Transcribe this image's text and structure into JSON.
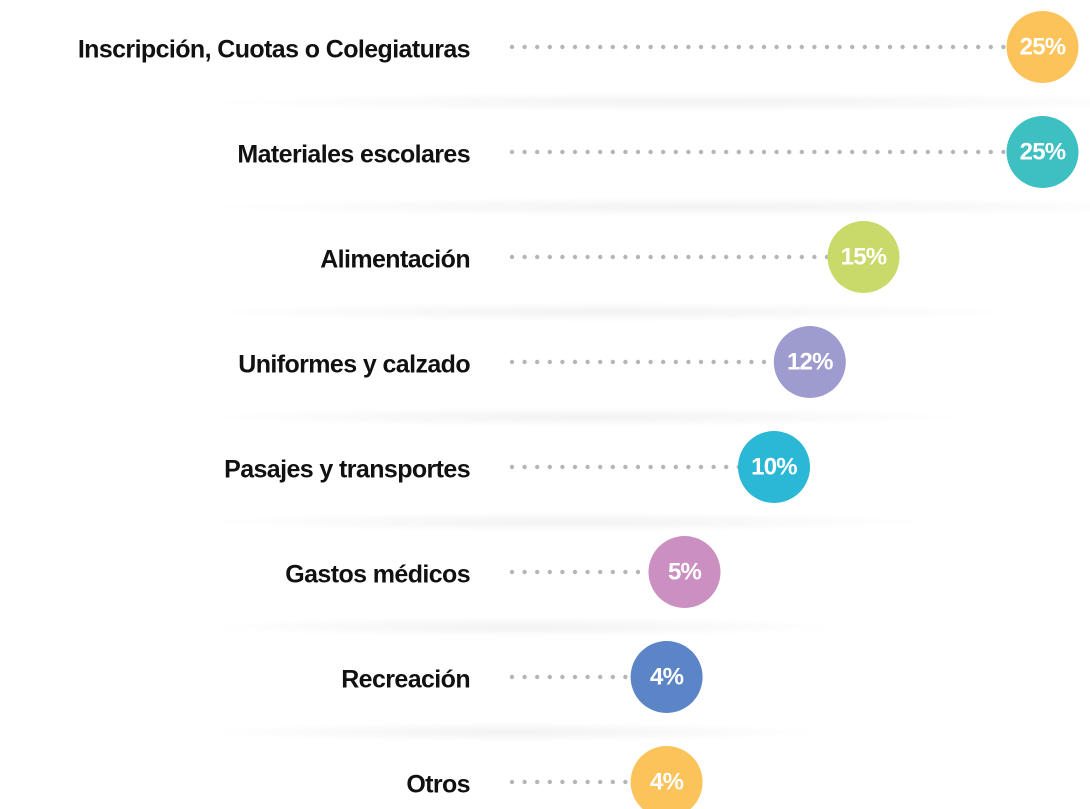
{
  "chart_data": {
    "type": "lollipop",
    "categories": [
      "Inscripción, Cuotas o Colegiaturas",
      "Materiales escolares",
      "Alimentación",
      "Uniformes y calzado",
      "Pasajes y transportes",
      "Gastos médicos",
      "Recreación",
      "Otros"
    ],
    "values": [
      25,
      25,
      15,
      12,
      10,
      5,
      4,
      4
    ],
    "value_labels": [
      "25%",
      "25%",
      "15%",
      "12%",
      "10%",
      "5%",
      "4%",
      "4%"
    ],
    "colors": [
      "#fcc35a",
      "#3ebfc2",
      "#c9d96a",
      "#9e9bcf",
      "#2bb8d6",
      "#cc8fc2",
      "#5b85c6",
      "#fcc35a"
    ]
  }
}
